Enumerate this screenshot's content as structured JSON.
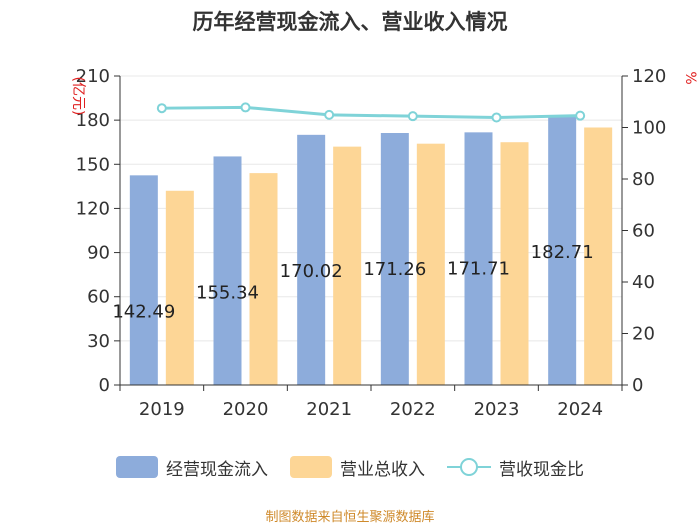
{
  "title": "历年经营现金流入、营业收入情况",
  "source": "制图数据来自恒生聚源数据库",
  "colors": {
    "cash_bar": "#8dacdb",
    "revenue_bar": "#fdd696",
    "ratio_line": "#7fd3d8",
    "left_unit": "#e02020",
    "right_unit": "#e02020",
    "axis": "#333333",
    "grid": "#e8e8e8"
  },
  "chart_data": {
    "type": "bar",
    "title": "历年经营现金流入、营业收入情况",
    "categories": [
      "2019",
      "2020",
      "2021",
      "2022",
      "2023",
      "2024"
    ],
    "y_left": {
      "unit_label": "(亿元)",
      "range": [
        0,
        210
      ],
      "ticks": [
        0,
        30,
        60,
        90,
        120,
        150,
        180,
        210
      ]
    },
    "y_right": {
      "unit_label": "%",
      "range": [
        0,
        120
      ],
      "ticks": [
        0,
        20,
        40,
        60,
        80,
        100,
        120
      ]
    },
    "series": [
      {
        "name": "经营现金流入",
        "type": "bar",
        "axis": "left",
        "values": [
          142.49,
          155.34,
          170.02,
          171.26,
          171.71,
          182.71
        ],
        "data_labels": [
          "142.49",
          "155.34",
          "170.02",
          "171.26",
          "171.71",
          "182.71"
        ]
      },
      {
        "name": "营业总收入",
        "type": "bar",
        "axis": "left",
        "values": [
          132,
          144,
          162,
          164,
          165,
          175
        ]
      },
      {
        "name": "营收现金比",
        "type": "line",
        "axis": "right",
        "values": [
          107.5,
          107.8,
          104.9,
          104.4,
          103.9,
          104.6
        ]
      }
    ],
    "grid": true,
    "legend_position": "bottom"
  }
}
